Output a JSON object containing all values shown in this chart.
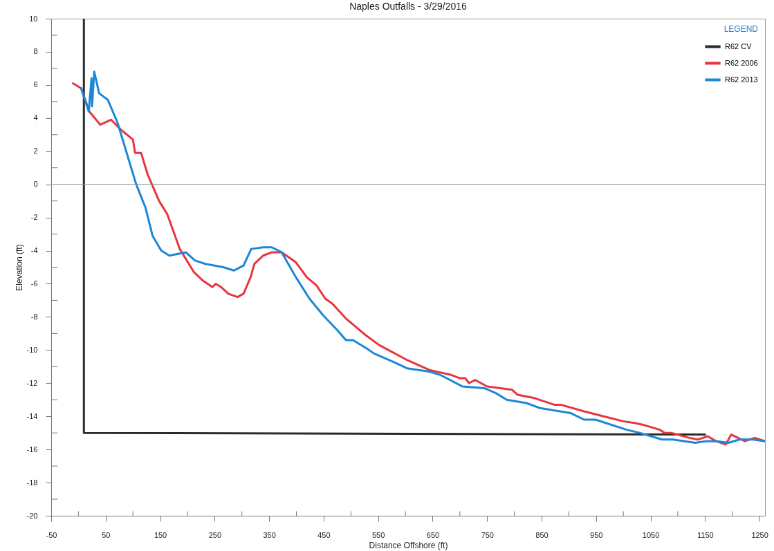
{
  "chart_data": {
    "type": "line",
    "title": "Naples Outfalls - 3/29/2016",
    "xlabel": "Distance Offshore (ft)",
    "ylabel": "Elevation (ft)",
    "legend_title": "LEGEND",
    "legend": "top right",
    "grid": false,
    "marker": "none",
    "line_style": "solid",
    "xlim": [
      -50,
      1260
    ],
    "ylim": [
      -20,
      10
    ],
    "xticks": [
      -50,
      {
        "value": 0,
        "label": null
      },
      50,
      {
        "value": 100,
        "label": null
      },
      150,
      {
        "value": 200,
        "label": null
      },
      250,
      {
        "value": 300,
        "label": null
      },
      350,
      {
        "value": 400,
        "label": null
      },
      450,
      {
        "value": 500,
        "label": null
      },
      550,
      {
        "value": 600,
        "label": null
      },
      650,
      {
        "value": 700,
        "label": null
      },
      750,
      {
        "value": 800,
        "label": null
      },
      850,
      {
        "value": 900,
        "label": null
      },
      950,
      {
        "value": 1000,
        "label": null
      },
      1050,
      {
        "value": 1100,
        "label": null
      },
      1150,
      {
        "value": 1200,
        "label": null
      },
      1250
    ],
    "yticks": [
      -20,
      {
        "value": -19,
        "label": null
      },
      -18,
      {
        "value": -17,
        "label": null
      },
      -16,
      {
        "value": -15,
        "label": null
      },
      -14,
      {
        "value": -13,
        "label": null
      },
      -12,
      {
        "value": -11,
        "label": null
      },
      -10,
      {
        "value": -9,
        "label": null
      },
      -8,
      {
        "value": -7,
        "label": null
      },
      -6,
      {
        "value": -5,
        "label": null
      },
      -4,
      {
        "value": -3,
        "label": null
      },
      -2,
      {
        "value": -1,
        "label": null
      },
      0,
      {
        "value": 1,
        "label": null
      },
      2,
      {
        "value": 3,
        "label": null
      },
      4,
      {
        "value": 5,
        "label": null
      },
      6,
      {
        "value": 7,
        "label": null
      },
      8,
      {
        "value": 9,
        "label": null
      },
      10
    ],
    "ref_lines": [
      {
        "axis": "y",
        "value": 0,
        "color": "#8a9a9a"
      }
    ],
    "series": [
      {
        "name": "R62 CV",
        "color": "#2b2b2b",
        "x": [
          10,
          10,
          1150
        ],
        "values": [
          10,
          -15,
          -15.1
        ]
      },
      {
        "name": "R62 2006",
        "color": "#e8353f",
        "x": [
          -10,
          5,
          20,
          40,
          60,
          78,
          100,
          104,
          115,
          127,
          148,
          163,
          186,
          212,
          228,
          246,
          252,
          262,
          275,
          292,
          303,
          316,
          323,
          339,
          355,
          373,
          399,
          419,
          437,
          453,
          466,
          491,
          527,
          552,
          603,
          644,
          684,
          700,
          710,
          717,
          728,
          750,
          796,
          806,
          837,
          873,
          885,
          928,
          964,
          1000,
          1020,
          1035,
          1066,
          1076,
          1088,
          1121,
          1137,
          1155,
          1170,
          1188,
          1198,
          1223,
          1241,
          1260
        ],
        "values": [
          6.1,
          5.8,
          4.4,
          3.6,
          3.9,
          3.3,
          2.7,
          1.9,
          1.9,
          0.6,
          -1,
          -1.8,
          -3.9,
          -5.3,
          -5.8,
          -6.2,
          -6,
          -6.2,
          -6.6,
          -6.8,
          -6.6,
          -5.6,
          -4.8,
          -4.3,
          -4.1,
          -4.1,
          -4.7,
          -5.6,
          -6.1,
          -6.9,
          -7.2,
          -8.1,
          -9.1,
          -9.7,
          -10.6,
          -11.2,
          -11.5,
          -11.7,
          -11.7,
          -12,
          -11.8,
          -12.2,
          -12.4,
          -12.7,
          -12.9,
          -13.3,
          -13.3,
          -13.7,
          -14,
          -14.3,
          -14.4,
          -14.5,
          -14.8,
          -15,
          -15,
          -15.3,
          -15.4,
          -15.2,
          -15.5,
          -15.7,
          -15.1,
          -15.5,
          -15.3,
          -15.5
        ]
      },
      {
        "name": "R62 2013",
        "color": "#1a87d8",
        "x": [
          5,
          19,
          24,
          25,
          29,
          38,
          54,
          72,
          106,
          123,
          136,
          152,
          167,
          197,
          214,
          233,
          266,
          285,
          303,
          317,
          339,
          355,
          373,
          399,
          424,
          449,
          475,
          491,
          504,
          529,
          542,
          577,
          603,
          644,
          664,
          705,
          745,
          766,
          786,
          822,
          847,
          903,
          928,
          949,
          1005,
          1030,
          1071,
          1091,
          1132,
          1152,
          1172,
          1193,
          1213,
          1238,
          1260
        ],
        "values": [
          5.8,
          4.4,
          6.4,
          4.7,
          6.8,
          5.5,
          5.1,
          3.7,
          0,
          -1.4,
          -3.1,
          -4,
          -4.3,
          -4.1,
          -4.6,
          -4.8,
          -5,
          -5.2,
          -4.9,
          -3.9,
          -3.8,
          -3.8,
          -4.1,
          -5.6,
          -6.9,
          -7.9,
          -8.8,
          -9.4,
          -9.4,
          -9.9,
          -10.2,
          -10.7,
          -11.1,
          -11.3,
          -11.5,
          -12.2,
          -12.3,
          -12.6,
          -13,
          -13.2,
          -13.5,
          -13.8,
          -14.2,
          -14.2,
          -14.8,
          -15,
          -15.4,
          -15.4,
          -15.6,
          -15.5,
          -15.5,
          -15.6,
          -15.4,
          -15.4,
          -15.5
        ]
      }
    ]
  }
}
